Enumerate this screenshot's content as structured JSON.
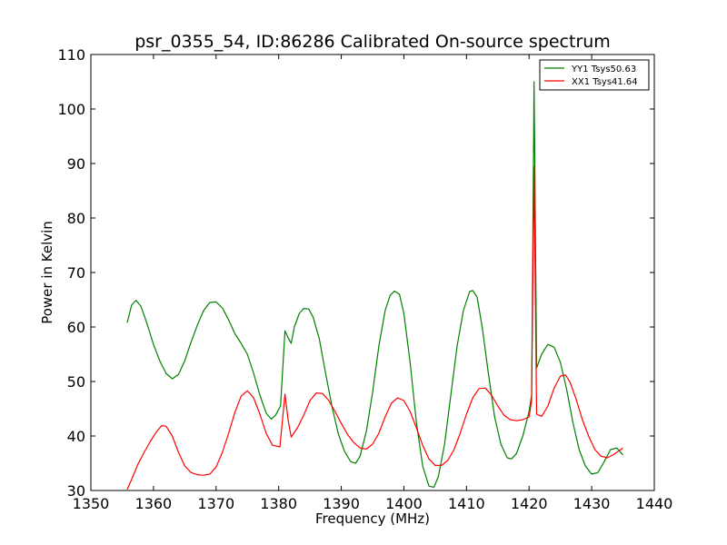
{
  "chart_data": {
    "type": "line",
    "title": "psr_0355_54, ID:86286 Calibrated On-source spectrum",
    "xlabel": "Frequency (MHz)",
    "ylabel": "Power in Kelvin",
    "xlim": [
      1350,
      1440
    ],
    "ylim": [
      30,
      110
    ],
    "xticks": [
      "1350",
      "1360",
      "1370",
      "1380",
      "1390",
      "1400",
      "1410",
      "1420",
      "1430",
      "1440"
    ],
    "yticks": [
      "30",
      "40",
      "50",
      "60",
      "70",
      "80",
      "90",
      "100",
      "110"
    ],
    "grid": false,
    "legend_position": "top-right",
    "series": [
      {
        "name": "YY1 Tsys50.63",
        "color": "#008000",
        "points": [
          [
            1355.8,
            60.8
          ],
          [
            1356.5,
            64.0
          ],
          [
            1357.2,
            64.9
          ],
          [
            1358.0,
            63.8
          ],
          [
            1359.0,
            60.5
          ],
          [
            1360.0,
            56.8
          ],
          [
            1361.0,
            53.8
          ],
          [
            1362.0,
            51.5
          ],
          [
            1363.0,
            50.5
          ],
          [
            1364.0,
            51.3
          ],
          [
            1365.0,
            53.8
          ],
          [
            1366.0,
            57.2
          ],
          [
            1367.0,
            60.3
          ],
          [
            1368.0,
            63.0
          ],
          [
            1369.0,
            64.5
          ],
          [
            1370.0,
            64.6
          ],
          [
            1371.0,
            63.5
          ],
          [
            1372.0,
            61.3
          ],
          [
            1373.0,
            58.8
          ],
          [
            1374.0,
            57.0
          ],
          [
            1375.0,
            55.0
          ],
          [
            1376.0,
            51.5
          ],
          [
            1377.0,
            47.5
          ],
          [
            1378.0,
            44.2
          ],
          [
            1378.8,
            43.1
          ],
          [
            1379.5,
            43.8
          ],
          [
            1380.3,
            45.5
          ],
          [
            1381.0,
            59.3
          ],
          [
            1381.6,
            57.8
          ],
          [
            1382.0,
            57.0
          ],
          [
            1382.5,
            60.0
          ],
          [
            1383.3,
            62.5
          ],
          [
            1384.0,
            63.4
          ],
          [
            1384.8,
            63.3
          ],
          [
            1385.5,
            61.8
          ],
          [
            1386.5,
            57.8
          ],
          [
            1387.5,
            51.5
          ],
          [
            1388.5,
            45.5
          ],
          [
            1389.5,
            40.5
          ],
          [
            1390.5,
            37.2
          ],
          [
            1391.5,
            35.3
          ],
          [
            1392.3,
            35.0
          ],
          [
            1393.0,
            36.3
          ],
          [
            1394.0,
            40.8
          ],
          [
            1395.0,
            48.0
          ],
          [
            1396.0,
            56.5
          ],
          [
            1397.0,
            63.0
          ],
          [
            1397.8,
            65.8
          ],
          [
            1398.5,
            66.6
          ],
          [
            1399.3,
            66.0
          ],
          [
            1400.0,
            62.5
          ],
          [
            1401.0,
            53.5
          ],
          [
            1402.0,
            42.5
          ],
          [
            1403.0,
            34.5
          ],
          [
            1404.0,
            30.8
          ],
          [
            1404.8,
            30.6
          ],
          [
            1405.5,
            32.5
          ],
          [
            1406.5,
            38.5
          ],
          [
            1407.5,
            47.5
          ],
          [
            1408.5,
            56.5
          ],
          [
            1409.5,
            63.0
          ],
          [
            1410.5,
            66.5
          ],
          [
            1411.0,
            66.7
          ],
          [
            1411.7,
            65.5
          ],
          [
            1412.5,
            60.0
          ],
          [
            1413.5,
            51.5
          ],
          [
            1414.5,
            43.5
          ],
          [
            1415.5,
            38.5
          ],
          [
            1416.5,
            36.0
          ],
          [
            1417.2,
            35.8
          ],
          [
            1418.0,
            36.8
          ],
          [
            1419.0,
            40.0
          ],
          [
            1420.0,
            44.5
          ],
          [
            1420.4,
            47.5
          ],
          [
            1420.8,
            105.0
          ],
          [
            1421.2,
            52.5
          ],
          [
            1422.0,
            55.0
          ],
          [
            1423.0,
            56.8
          ],
          [
            1424.0,
            56.3
          ],
          [
            1425.0,
            53.5
          ],
          [
            1426.0,
            48.5
          ],
          [
            1427.0,
            42.5
          ],
          [
            1428.0,
            37.5
          ],
          [
            1429.0,
            34.5
          ],
          [
            1430.0,
            33.0
          ],
          [
            1431.0,
            33.3
          ],
          [
            1432.0,
            35.3
          ],
          [
            1433.0,
            37.5
          ],
          [
            1434.0,
            37.8
          ],
          [
            1435.0,
            36.5
          ]
        ]
      },
      {
        "name": "XX1 Tsys41.64",
        "color": "#ff0000",
        "points": [
          [
            1355.8,
            30.2
          ],
          [
            1356.5,
            32.0
          ],
          [
            1357.5,
            34.8
          ],
          [
            1358.5,
            37.0
          ],
          [
            1359.5,
            39.0
          ],
          [
            1360.5,
            40.8
          ],
          [
            1361.3,
            41.9
          ],
          [
            1362.0,
            41.8
          ],
          [
            1363.0,
            40.0
          ],
          [
            1364.0,
            37.0
          ],
          [
            1365.0,
            34.5
          ],
          [
            1366.0,
            33.3
          ],
          [
            1367.0,
            32.9
          ],
          [
            1368.0,
            32.8
          ],
          [
            1369.0,
            33.0
          ],
          [
            1370.0,
            34.3
          ],
          [
            1371.0,
            37.0
          ],
          [
            1372.0,
            40.5
          ],
          [
            1373.0,
            44.3
          ],
          [
            1374.0,
            47.3
          ],
          [
            1375.0,
            48.3
          ],
          [
            1376.0,
            47.0
          ],
          [
            1377.0,
            44.0
          ],
          [
            1378.0,
            40.5
          ],
          [
            1379.0,
            38.3
          ],
          [
            1380.2,
            38.0
          ],
          [
            1381.0,
            47.7
          ],
          [
            1381.5,
            43.0
          ],
          [
            1382.0,
            39.8
          ],
          [
            1383.0,
            41.5
          ],
          [
            1384.0,
            43.8
          ],
          [
            1385.0,
            46.5
          ],
          [
            1386.0,
            47.9
          ],
          [
            1387.0,
            47.8
          ],
          [
            1388.0,
            46.5
          ],
          [
            1389.0,
            44.5
          ],
          [
            1390.0,
            42.3
          ],
          [
            1391.0,
            40.3
          ],
          [
            1392.0,
            38.8
          ],
          [
            1393.0,
            37.8
          ],
          [
            1394.0,
            37.6
          ],
          [
            1395.0,
            38.5
          ],
          [
            1396.0,
            40.5
          ],
          [
            1397.0,
            43.5
          ],
          [
            1398.0,
            46.0
          ],
          [
            1399.0,
            47.0
          ],
          [
            1400.0,
            46.5
          ],
          [
            1401.0,
            44.5
          ],
          [
            1402.0,
            41.5
          ],
          [
            1403.0,
            38.3
          ],
          [
            1404.0,
            35.8
          ],
          [
            1405.0,
            34.6
          ],
          [
            1406.0,
            34.6
          ],
          [
            1407.0,
            35.5
          ],
          [
            1408.0,
            37.5
          ],
          [
            1409.0,
            40.5
          ],
          [
            1410.0,
            44.0
          ],
          [
            1411.0,
            47.0
          ],
          [
            1412.0,
            48.7
          ],
          [
            1413.0,
            48.8
          ],
          [
            1414.0,
            47.5
          ],
          [
            1415.0,
            45.5
          ],
          [
            1416.0,
            43.8
          ],
          [
            1417.0,
            43.0
          ],
          [
            1418.0,
            42.8
          ],
          [
            1419.0,
            43.0
          ],
          [
            1420.0,
            43.5
          ],
          [
            1420.4,
            46.5
          ],
          [
            1420.8,
            89.5
          ],
          [
            1421.2,
            44.0
          ],
          [
            1422.0,
            43.6
          ],
          [
            1423.0,
            45.5
          ],
          [
            1424.0,
            48.8
          ],
          [
            1425.0,
            51.0
          ],
          [
            1425.8,
            51.2
          ],
          [
            1426.5,
            50.0
          ],
          [
            1427.5,
            46.8
          ],
          [
            1428.5,
            43.0
          ],
          [
            1429.5,
            40.0
          ],
          [
            1430.5,
            37.5
          ],
          [
            1431.5,
            36.3
          ],
          [
            1432.5,
            36.0
          ],
          [
            1433.5,
            36.6
          ],
          [
            1434.5,
            37.4
          ],
          [
            1435.0,
            37.8
          ]
        ]
      }
    ]
  }
}
